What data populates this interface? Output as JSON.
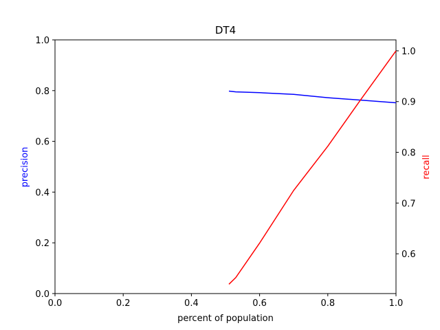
{
  "chart_data": {
    "type": "line",
    "title": "DT4",
    "xlabel": "percent of population",
    "ylabel_left": "precision",
    "ylabel_right": "recall",
    "xlim": [
      0.0,
      1.0
    ],
    "ylim_left": [
      0.0,
      1.0
    ],
    "ylim_right": [
      0.5216,
      1.0216
    ],
    "x_ticks": [
      "0.0",
      "0.2",
      "0.4",
      "0.6",
      "0.8",
      "1.0"
    ],
    "y_left_ticks": [
      "0.0",
      "0.2",
      "0.4",
      "0.6",
      "0.8",
      "1.0"
    ],
    "y_right_ticks": [
      "0.6",
      "0.7",
      "0.8",
      "0.9",
      "1.0"
    ],
    "grid": false,
    "series": [
      {
        "name": "precision",
        "axis": "left",
        "color": "#0000ff",
        "points": [
          [
            0.51,
            0.798
          ],
          [
            0.53,
            0.795
          ],
          [
            0.6,
            0.792
          ],
          [
            0.7,
            0.785
          ],
          [
            0.8,
            0.772
          ],
          [
            0.9,
            0.762
          ],
          [
            1.0,
            0.752
          ]
        ]
      },
      {
        "name": "recall",
        "axis": "right",
        "color": "#ff0000",
        "points": [
          [
            0.51,
            0.54
          ],
          [
            0.53,
            0.553
          ],
          [
            0.6,
            0.621
          ],
          [
            0.7,
            0.725
          ],
          [
            0.8,
            0.812
          ],
          [
            0.9,
            0.907
          ],
          [
            1.0,
            1.0
          ]
        ]
      }
    ]
  }
}
